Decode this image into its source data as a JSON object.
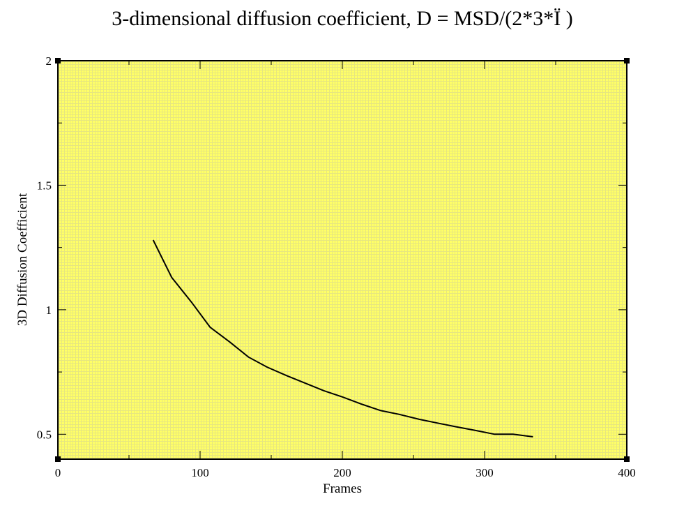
{
  "chart_data": {
    "type": "line",
    "title": "3-dimensional diffusion coefficient, D = MSD/(2*3*Ï  )",
    "xlabel": "Frames",
    "ylabel": "3D Diffusion Coefficient",
    "xlim": [
      0,
      400
    ],
    "ylim": [
      0.4,
      2.0
    ],
    "x_major_ticks": [
      0,
      100,
      200,
      300,
      400
    ],
    "x_minor_ticks": [
      50,
      150,
      250,
      350
    ],
    "x_tick_labels": [
      "0",
      "100",
      "200",
      "300",
      "400"
    ],
    "y_major_ticks": [
      0.5,
      1.0,
      1.5,
      2.0
    ],
    "y_minor_ticks": [
      0.75,
      1.25,
      1.75
    ],
    "y_tick_labels": [
      "0.5",
      "1",
      "1.5",
      "2"
    ],
    "grid": false,
    "plot_background": "#ffff66",
    "line_color": "#000000",
    "series": [
      {
        "x": [
          67,
          80,
          94,
          107,
          121,
          134,
          147,
          161,
          174,
          187,
          200,
          214,
          227,
          240,
          254,
          267,
          280,
          294,
          307,
          320,
          334
        ],
        "y": [
          1.28,
          1.13,
          1.03,
          0.93,
          0.87,
          0.81,
          0.77,
          0.735,
          0.705,
          0.675,
          0.65,
          0.62,
          0.595,
          0.58,
          0.56,
          0.545,
          0.53,
          0.515,
          0.5,
          0.5,
          0.49
        ]
      }
    ]
  }
}
